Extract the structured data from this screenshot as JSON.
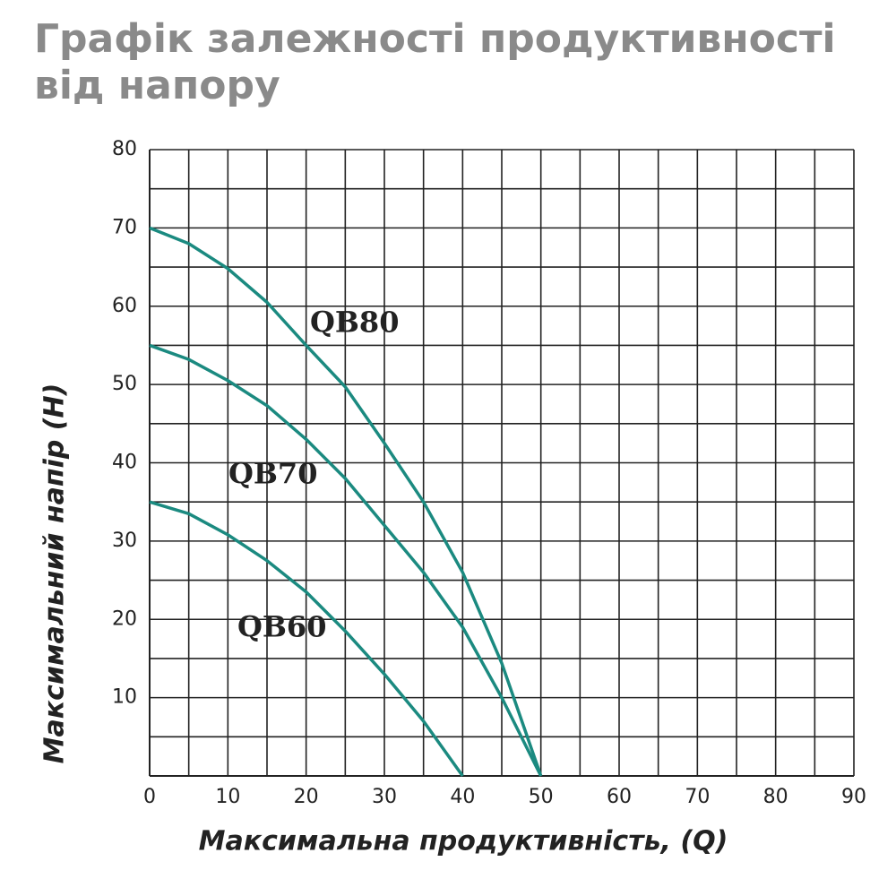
{
  "chart_data": {
    "type": "line",
    "title": "Графік залежності продуктивності від напору",
    "x_label": "Максимальна продуктивність, (Q)",
    "y_label": "Максимальний напір (H)",
    "xlim": [
      0,
      90
    ],
    "ylim": [
      0,
      80
    ],
    "xticks": [
      0,
      10,
      20,
      30,
      40,
      50,
      60,
      70,
      80,
      90
    ],
    "yticks": [
      10,
      20,
      30,
      40,
      50,
      60,
      70,
      80
    ],
    "xminor": [
      5,
      15,
      25,
      35,
      45,
      55,
      65,
      75,
      85
    ],
    "yminor": [
      5,
      15,
      25,
      35,
      45,
      55,
      65,
      75
    ],
    "grid": true,
    "series": [
      {
        "name": "QB80",
        "color": "#1b8a80",
        "x": [
          0,
          5,
          10,
          15,
          20,
          25,
          30,
          35,
          40,
          45,
          50
        ],
        "values": [
          70,
          68,
          64.8,
          60.5,
          55,
          49.7,
          42.5,
          35,
          26,
          14.4,
          0
        ]
      },
      {
        "name": "QB70",
        "color": "#1b8a80",
        "x": [
          0,
          5,
          10,
          15,
          20,
          25,
          30,
          35,
          40,
          45,
          50
        ],
        "values": [
          55,
          53.2,
          50.5,
          47.3,
          43,
          38,
          32,
          26,
          19,
          10,
          0
        ]
      },
      {
        "name": "QB60",
        "color": "#1b8a80",
        "x": [
          0,
          5,
          10,
          15,
          20,
          25,
          30,
          35,
          40
        ],
        "values": [
          35,
          33.5,
          30.8,
          27.5,
          23.5,
          18.5,
          13,
          7,
          0
        ]
      }
    ]
  }
}
